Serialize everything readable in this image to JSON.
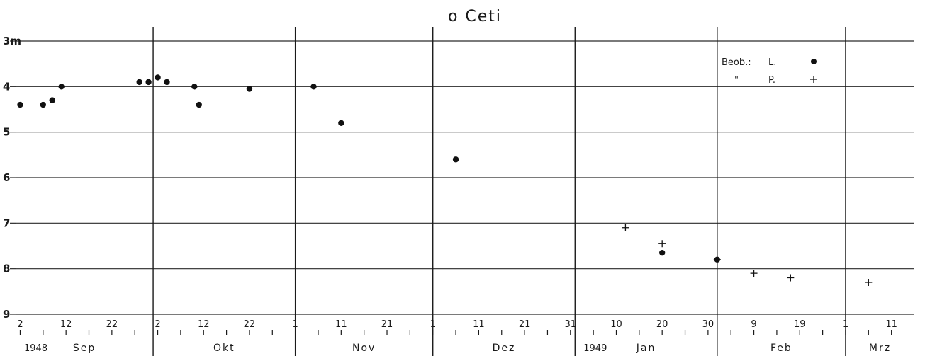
{
  "chart_data": {
    "type": "scatter",
    "title": "o Ceti",
    "ylim": [
      3,
      9
    ],
    "y_inverted": true,
    "yticks": [
      {
        "value": 3,
        "label": "3m"
      },
      {
        "value": 4,
        "label": "4"
      },
      {
        "value": 5,
        "label": "5"
      },
      {
        "value": 6,
        "label": "6"
      },
      {
        "value": 7,
        "label": "7"
      },
      {
        "value": 8,
        "label": "8"
      },
      {
        "value": 9,
        "label": "9"
      }
    ],
    "xlim": [
      "1948-09-01",
      "1949-03-16"
    ],
    "grid": true,
    "year_labels": [
      {
        "date": "1948-09-01",
        "label": "1948"
      },
      {
        "date": "1949-01-01",
        "label": "1949"
      }
    ],
    "months": [
      {
        "start": "1948-09-01",
        "label": "Sep",
        "day_labels": [
          "2",
          "12",
          "22"
        ],
        "day_ticks": [
          2,
          7,
          12,
          17,
          22,
          27
        ]
      },
      {
        "start": "1948-10-01",
        "label": "Okt",
        "day_labels": [
          "2",
          "12",
          "22"
        ],
        "day_ticks": [
          2,
          7,
          12,
          17,
          22,
          27
        ]
      },
      {
        "start": "1948-11-01",
        "label": "Nov",
        "day_labels": [
          "1",
          "11",
          "21"
        ],
        "day_ticks": [
          1,
          6,
          11,
          16,
          21,
          26
        ]
      },
      {
        "start": "1948-12-01",
        "label": "Dez",
        "day_labels": [
          "1",
          "11",
          "21",
          "31"
        ],
        "day_ticks": [
          1,
          6,
          11,
          16,
          21,
          26,
          31
        ]
      },
      {
        "start": "1949-01-01",
        "label": "Jan",
        "day_labels": [
          "10",
          "20",
          "30"
        ],
        "day_ticks": [
          5,
          10,
          15,
          20,
          25,
          30
        ]
      },
      {
        "start": "1949-02-01",
        "label": "Feb",
        "day_labels": [
          "9",
          "19"
        ],
        "day_ticks": [
          4,
          9,
          14,
          19,
          24
        ]
      },
      {
        "start": "1949-03-01",
        "label": "Mrz",
        "day_labels": [
          "1",
          "11"
        ],
        "day_ticks": [
          1,
          6,
          11
        ]
      }
    ],
    "legend": {
      "placement": "top-right",
      "entries": [
        {
          "observer_label": "Beob.:",
          "name": "L.",
          "marker": "dot"
        },
        {
          "observer_label": "\"",
          "name": "P.",
          "marker": "plus"
        }
      ]
    },
    "series": [
      {
        "name": "L.",
        "marker": "dot",
        "points": [
          {
            "x": "1948-09-02",
            "y": 4.4
          },
          {
            "x": "1948-09-07",
            "y": 4.4
          },
          {
            "x": "1948-09-09",
            "y": 4.3
          },
          {
            "x": "1948-09-11",
            "y": 4.0
          },
          {
            "x": "1948-09-28",
            "y": 3.9
          },
          {
            "x": "1948-09-30",
            "y": 3.9
          },
          {
            "x": "1948-10-02",
            "y": 3.8
          },
          {
            "x": "1948-10-04",
            "y": 3.9
          },
          {
            "x": "1948-10-10",
            "y": 4.0
          },
          {
            "x": "1948-10-11",
            "y": 4.4
          },
          {
            "x": "1948-10-22",
            "y": 4.05
          },
          {
            "x": "1948-11-05",
            "y": 4.0
          },
          {
            "x": "1948-11-11",
            "y": 4.8
          },
          {
            "x": "1948-12-06",
            "y": 5.6
          },
          {
            "x": "1949-01-20",
            "y": 7.65
          },
          {
            "x": "1949-02-01",
            "y": 7.8
          }
        ]
      },
      {
        "name": "P.",
        "marker": "plus",
        "points": [
          {
            "x": "1949-01-12",
            "y": 7.1
          },
          {
            "x": "1949-01-20",
            "y": 7.45
          },
          {
            "x": "1949-02-01",
            "y": 7.8
          },
          {
            "x": "1949-02-09",
            "y": 8.1
          },
          {
            "x": "1949-02-17",
            "y": 8.2
          },
          {
            "x": "1949-03-06",
            "y": 8.3
          }
        ]
      }
    ]
  }
}
